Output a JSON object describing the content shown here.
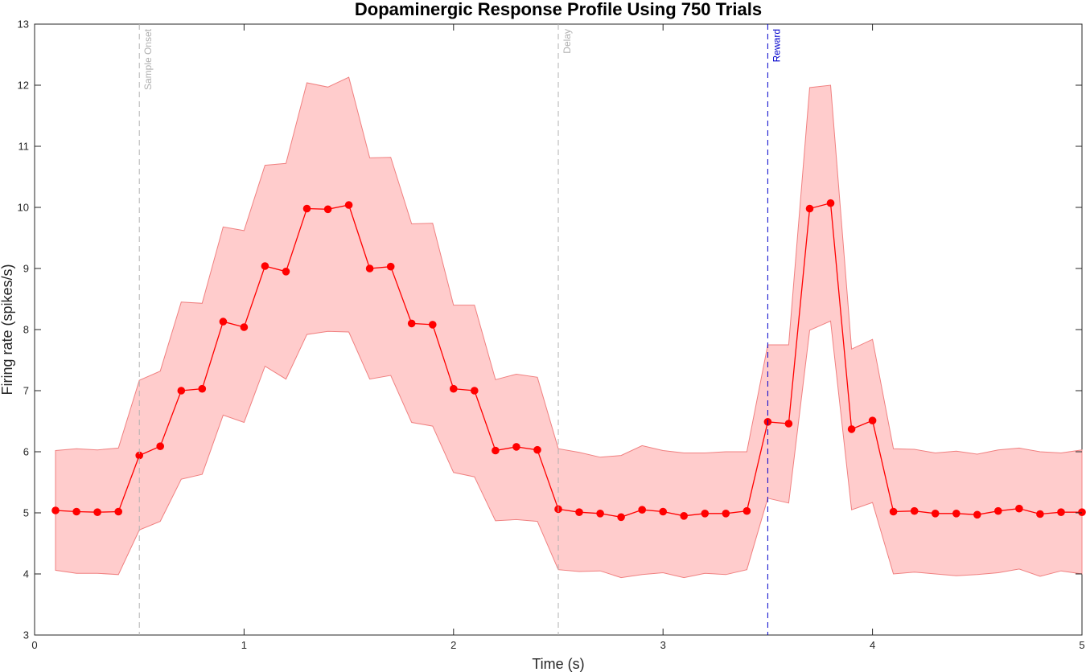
{
  "chart_data": {
    "type": "line",
    "title": "Dopaminergic Response Profile Using 750 Trials",
    "xlabel": "Time (s)",
    "ylabel": "Firing rate (spikes/s)",
    "xlim": [
      0,
      5
    ],
    "ylim": [
      3,
      13
    ],
    "xticks": [
      0,
      1,
      2,
      3,
      4,
      5
    ],
    "yticks": [
      3,
      4,
      5,
      6,
      7,
      8,
      9,
      10,
      11,
      12,
      13
    ],
    "grid": false,
    "series": [
      {
        "color": "#ff0000",
        "band_color": "#ffcccc",
        "band_edge_color": "#f08080",
        "x": [
          0.1,
          0.2,
          0.3,
          0.4,
          0.5,
          0.6,
          0.7,
          0.8,
          0.9,
          1.0,
          1.1,
          1.2,
          1.3,
          1.4,
          1.5,
          1.6,
          1.7,
          1.8,
          1.9,
          2.0,
          2.1,
          2.2,
          2.3,
          2.4,
          2.5,
          2.6,
          2.7,
          2.8,
          2.9,
          3.0,
          3.1,
          3.2,
          3.3,
          3.4,
          3.5,
          3.6,
          3.7,
          3.8,
          3.9,
          4.0,
          4.1,
          4.2,
          4.3,
          4.4,
          4.5,
          4.6,
          4.7,
          4.8,
          4.9,
          5.0
        ],
        "y": [
          5.04,
          5.02,
          5.01,
          5.02,
          5.94,
          6.09,
          7.0,
          7.03,
          8.13,
          8.04,
          9.04,
          8.95,
          9.98,
          9.97,
          10.04,
          9.0,
          9.03,
          8.1,
          8.08,
          7.03,
          7.0,
          6.02,
          6.08,
          6.03,
          5.06,
          5.01,
          4.99,
          4.93,
          5.05,
          5.02,
          4.95,
          4.99,
          4.99,
          5.03,
          6.49,
          6.46,
          9.98,
          10.07,
          6.37,
          6.51,
          5.02,
          5.03,
          4.99,
          4.99,
          4.97,
          5.03,
          5.07,
          4.98,
          5.01,
          5.01
        ],
        "upper": [
          6.02,
          6.05,
          6.03,
          6.06,
          7.17,
          7.32,
          8.45,
          8.43,
          9.68,
          9.62,
          10.69,
          10.72,
          12.04,
          11.97,
          12.13,
          10.81,
          10.82,
          9.73,
          9.74,
          8.4,
          8.4,
          7.18,
          7.27,
          7.22,
          6.05,
          5.99,
          5.91,
          5.94,
          6.1,
          6.02,
          5.98,
          5.98,
          6.0,
          6.0,
          7.75,
          7.75,
          11.96,
          12.0,
          7.68,
          7.84,
          6.05,
          6.04,
          5.98,
          6.01,
          5.96,
          6.03,
          6.06,
          6.0,
          5.98,
          6.03
        ],
        "lower": [
          4.06,
          4.01,
          4.01,
          3.99,
          4.72,
          4.86,
          5.55,
          5.63,
          6.6,
          6.48,
          7.4,
          7.19,
          7.92,
          7.97,
          7.96,
          7.19,
          7.25,
          6.48,
          6.42,
          5.66,
          5.59,
          4.87,
          4.89,
          4.86,
          4.07,
          4.04,
          4.05,
          3.94,
          3.99,
          4.02,
          3.94,
          4.01,
          3.99,
          4.07,
          5.24,
          5.16,
          7.99,
          8.14,
          5.05,
          5.17,
          4.0,
          4.03,
          4.0,
          3.97,
          3.99,
          4.02,
          4.08,
          3.96,
          4.05,
          4.0
        ]
      }
    ],
    "annotations": [
      {
        "x": 0.5,
        "label": "Sample Onset",
        "color": "#b0b0b0"
      },
      {
        "x": 2.5,
        "label": "Delay",
        "color": "#b0b0b0"
      },
      {
        "x": 3.5,
        "label": "Reward",
        "color": "#0000cc"
      }
    ]
  }
}
